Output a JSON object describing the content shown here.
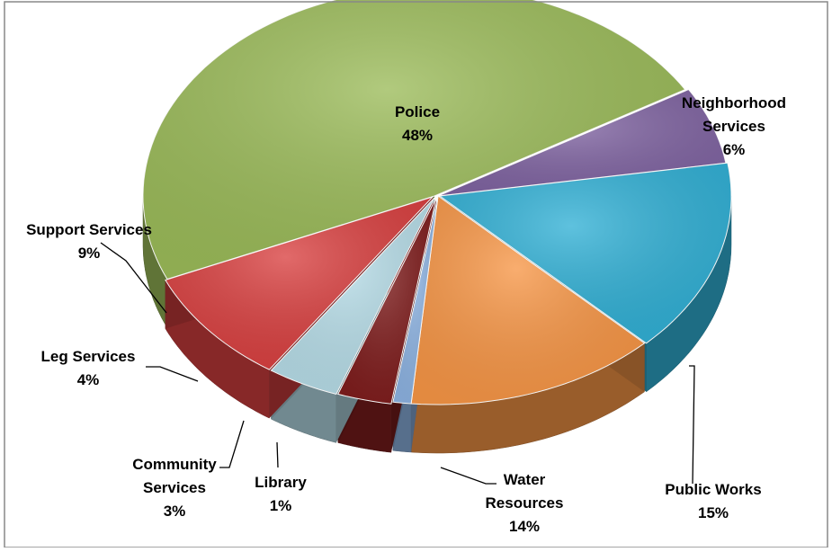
{
  "chart_data": {
    "type": "pie",
    "title": "",
    "style": "3d-exploded-oval",
    "slices": [
      {
        "name": "Police",
        "label_lines": [
          "Police",
          "48%"
        ],
        "value": 48,
        "color": "#9bbb59"
      },
      {
        "name": "Neighborhood Services",
        "label_lines": [
          "Neighborhood",
          "Services",
          "6%"
        ],
        "value": 6,
        "color": "#8064a2"
      },
      {
        "name": "Public Works",
        "label_lines": [
          "Public Works",
          "15%"
        ],
        "value": 15,
        "color": "#31b0d5"
      },
      {
        "name": "Water Resources",
        "label_lines": [
          "Water",
          "Resources",
          "14%"
        ],
        "value": 14,
        "color": "#f79646"
      },
      {
        "name": "Library",
        "label_lines": [
          "Library",
          "1%"
        ],
        "value": 1,
        "color": "#8db3e2"
      },
      {
        "name": "Community Services",
        "label_lines": [
          "Community",
          "Services",
          "3%"
        ],
        "value": 3,
        "color": "#7f1d1d"
      },
      {
        "name": "Leg Services",
        "label_lines": [
          "Leg Services",
          "4%"
        ],
        "value": 4,
        "color": "#b7dde8"
      },
      {
        "name": "Support Services",
        "label_lines": [
          "Support Services",
          "9%"
        ],
        "value": 9,
        "color": "#d94040"
      }
    ]
  }
}
